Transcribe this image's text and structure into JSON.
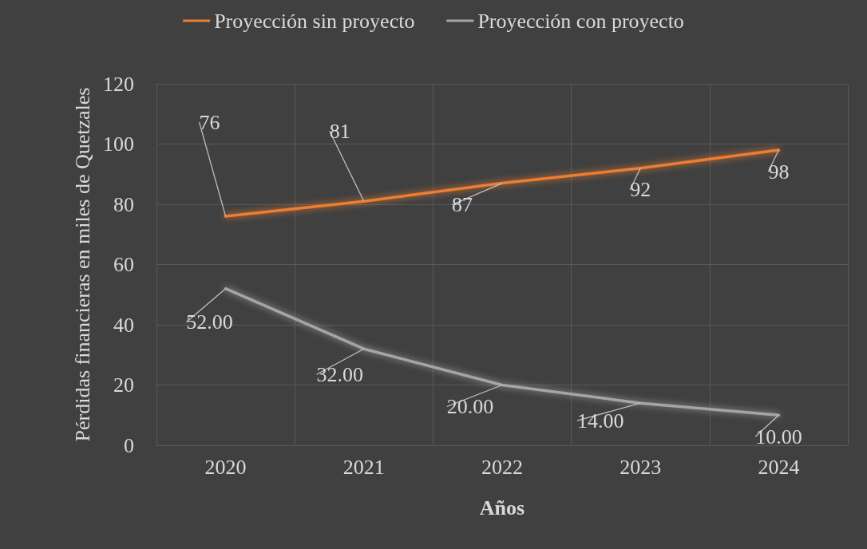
{
  "chart_data": {
    "type": "line",
    "xlabel": "Años",
    "ylabel": "Pérdidas financieras en miles de Quetzales",
    "categories": [
      "2020",
      "2021",
      "2022",
      "2023",
      "2024"
    ],
    "series": [
      {
        "name": "Proyección sin proyecto",
        "color": "#ed7d31",
        "values": [
          76,
          81,
          87,
          92,
          98
        ],
        "value_labels": [
          "76",
          "81",
          "87",
          "92",
          "98"
        ]
      },
      {
        "name": "Proyección con proyecto",
        "color": "#a5a5a5",
        "values": [
          52,
          32,
          20,
          14,
          10
        ],
        "value_labels": [
          "52.00",
          "32.00",
          "20.00",
          "14.00",
          "10.00"
        ]
      }
    ],
    "ylim": [
      0,
      120
    ],
    "yticks": [
      0,
      20,
      40,
      60,
      80,
      100,
      120
    ],
    "grid": true,
    "legend": "top",
    "marker": "none",
    "line_style": "solid"
  }
}
